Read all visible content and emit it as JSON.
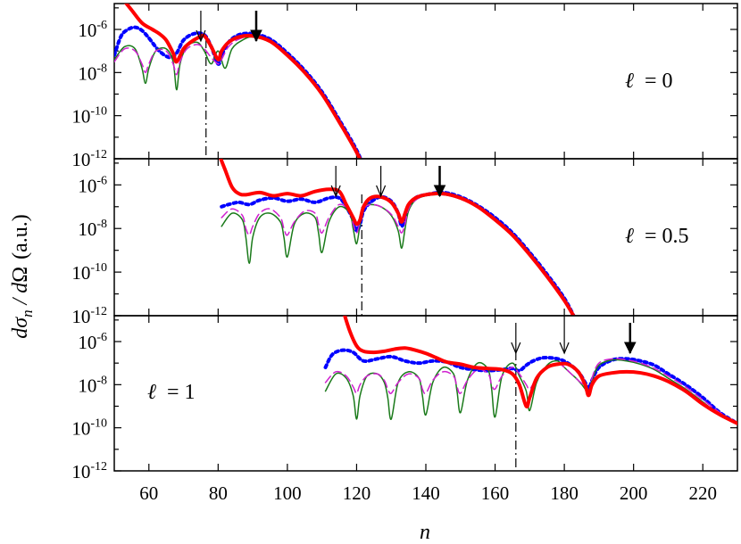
{
  "figure": {
    "ylabel": {
      "d1": "d",
      "sig": "σ",
      "sub": "n",
      "mid": " / d",
      "omega": "Ω",
      "units": "(a.u.)"
    },
    "xlabel": "n",
    "xticks": [
      "60",
      "80",
      "100",
      "120",
      "140",
      "160",
      "180",
      "200",
      "220"
    ]
  },
  "chart_data": [
    {
      "type": "line",
      "panel": "ℓ = 0",
      "label": {
        "ell": "ℓ",
        "eq": "= 0"
      },
      "xlim": [
        50,
        230
      ],
      "ylim_log10": [
        -12,
        -4.8
      ],
      "yscale": "log",
      "yticks": [
        {
          "base": "10",
          "exp": "-6"
        },
        {
          "base": "10",
          "exp": "-8"
        },
        {
          "base": "10",
          "exp": "-10"
        },
        {
          "base": "10",
          "exp": "-12"
        }
      ],
      "series": [
        {
          "style": "thick-red-solid",
          "color": "#ff0000",
          "x": [
            52,
            55,
            58,
            61,
            63,
            65,
            67,
            68,
            70,
            72,
            74,
            76,
            78,
            80,
            81,
            83,
            86,
            90,
            95,
            100,
            105,
            110,
            115,
            120,
            122
          ],
          "log10y": [
            -4.5,
            -5.1,
            -5.7,
            -6.0,
            -6.2,
            -6.5,
            -7.1,
            -7.5,
            -6.9,
            -6.6,
            -6.4,
            -6.3,
            -6.8,
            -7.4,
            -7.0,
            -6.6,
            -6.35,
            -6.3,
            -6.55,
            -7.2,
            -8.0,
            -9.0,
            -10.3,
            -11.7,
            -12.4
          ]
        },
        {
          "style": "dotted-blue",
          "color": "#0000ff",
          "x": [
            50,
            52,
            54,
            56,
            58,
            60,
            63,
            66,
            68,
            70,
            73,
            76,
            78,
            80,
            81,
            83,
            86,
            90,
            95,
            100,
            105,
            110,
            115,
            120,
            122
          ],
          "log10y": [
            -7.2,
            -6.3,
            -6.0,
            -5.9,
            -6.05,
            -6.4,
            -7.0,
            -7.3,
            -7.1,
            -6.5,
            -6.2,
            -6.25,
            -6.8,
            -7.6,
            -7.2,
            -6.6,
            -6.25,
            -6.2,
            -6.45,
            -7.1,
            -7.9,
            -8.9,
            -10.2,
            -11.6,
            -12.4
          ]
        },
        {
          "style": "thin-green-solid",
          "color": "#1a7a1a",
          "x": [
            50,
            53,
            56,
            58,
            59,
            60,
            62,
            65,
            67,
            68,
            69,
            71,
            74,
            76,
            78,
            80,
            82,
            84,
            87,
            90,
            95,
            100,
            105,
            110,
            115,
            120,
            122
          ],
          "log10y": [
            -7.4,
            -6.8,
            -6.9,
            -7.8,
            -8.5,
            -7.8,
            -7.0,
            -6.9,
            -7.5,
            -8.8,
            -7.6,
            -6.8,
            -6.6,
            -7.0,
            -7.6,
            -7.0,
            -7.8,
            -6.9,
            -6.5,
            -6.35,
            -6.6,
            -7.2,
            -8.0,
            -9.0,
            -10.3,
            -11.7,
            -12.4
          ]
        },
        {
          "style": "dashed-magenta",
          "color": "#d020d0",
          "x": [
            50,
            53,
            56,
            58,
            59,
            60,
            62,
            65,
            67,
            68,
            69,
            71,
            74,
            76,
            78,
            80,
            81,
            83,
            86,
            90,
            95,
            100,
            105,
            110,
            115,
            120,
            122
          ],
          "log10y": [
            -7.5,
            -6.9,
            -7.0,
            -7.6,
            -8.0,
            -7.6,
            -7.0,
            -7.0,
            -7.6,
            -8.1,
            -7.5,
            -6.9,
            -6.7,
            -6.9,
            -7.3,
            -7.6,
            -7.4,
            -6.8,
            -6.45,
            -6.32,
            -6.58,
            -7.2,
            -8.0,
            -9.0,
            -10.3,
            -11.7,
            -12.4
          ]
        }
      ],
      "arrows": [
        {
          "x": 75,
          "weight": "thin"
        },
        {
          "x": 91,
          "weight": "thick"
        }
      ],
      "dashdot_x": 76.5
    },
    {
      "type": "line",
      "panel": "ℓ = 0.5",
      "label": {
        "ell": "ℓ",
        "eq": "= 0.5"
      },
      "xlim": [
        50,
        230
      ],
      "ylim_log10": [
        -12,
        -4.8
      ],
      "yscale": "log",
      "yticks": [
        {
          "base": "10",
          "exp": "-6"
        },
        {
          "base": "10",
          "exp": "-8"
        },
        {
          "base": "10",
          "exp": "-10"
        },
        {
          "base": "10",
          "exp": "-12"
        }
      ],
      "series": [
        {
          "style": "thick-red-solid",
          "color": "#ff0000",
          "x": [
            80,
            82,
            84,
            86,
            88,
            92,
            96,
            100,
            104,
            108,
            112,
            115,
            117,
            119,
            120,
            121,
            122,
            124,
            127,
            130,
            132,
            133,
            134,
            135,
            137,
            140,
            145,
            150,
            155,
            160,
            165,
            170,
            175,
            180,
            183
          ],
          "log10y": [
            -4.5,
            -5.3,
            -6.1,
            -6.4,
            -6.45,
            -6.35,
            -6.5,
            -6.4,
            -6.5,
            -6.3,
            -6.2,
            -6.3,
            -6.9,
            -7.5,
            -7.8,
            -7.6,
            -7.0,
            -6.6,
            -6.55,
            -6.8,
            -7.3,
            -7.7,
            -7.3,
            -6.9,
            -6.6,
            -6.45,
            -6.4,
            -6.6,
            -7.0,
            -7.6,
            -8.3,
            -9.2,
            -10.2,
            -11.3,
            -12.1
          ]
        },
        {
          "style": "dotted-blue",
          "color": "#0000ff",
          "x": [
            81,
            83,
            86,
            89,
            92,
            96,
            100,
            104,
            108,
            112,
            115,
            117,
            119,
            120,
            121,
            122,
            124,
            127,
            130,
            132,
            133,
            134,
            135,
            137,
            140,
            145,
            150,
            155,
            160,
            165,
            170,
            175,
            180,
            183
          ],
          "log10y": [
            -7.0,
            -6.9,
            -6.8,
            -6.9,
            -6.7,
            -6.6,
            -6.75,
            -6.65,
            -6.8,
            -6.6,
            -6.6,
            -7.0,
            -7.6,
            -8.1,
            -7.8,
            -7.2,
            -6.8,
            -6.55,
            -6.75,
            -7.3,
            -7.9,
            -7.5,
            -7.0,
            -6.6,
            -6.45,
            -6.35,
            -6.55,
            -6.95,
            -7.5,
            -8.2,
            -9.1,
            -10.1,
            -11.2,
            -12.1
          ]
        },
        {
          "style": "thin-green-solid",
          "color": "#1a7a1a",
          "x": [
            81,
            84,
            87,
            88,
            89,
            90,
            92,
            95,
            98,
            99,
            100,
            102,
            105,
            108,
            109,
            110,
            112,
            115,
            118,
            119,
            120,
            121,
            122,
            124,
            127,
            130,
            132,
            133,
            134,
            135,
            137,
            140,
            145,
            150,
            155,
            160,
            165,
            170,
            175,
            180,
            183
          ],
          "log10y": [
            -7.9,
            -7.3,
            -7.6,
            -8.4,
            -9.6,
            -8.4,
            -7.5,
            -7.3,
            -7.7,
            -8.4,
            -9.3,
            -7.8,
            -7.3,
            -7.5,
            -8.2,
            -9.1,
            -7.7,
            -7.0,
            -7.3,
            -8.0,
            -8.7,
            -7.8,
            -7.0,
            -6.9,
            -7.0,
            -7.4,
            -8.1,
            -8.9,
            -8.0,
            -7.2,
            -6.7,
            -6.5,
            -6.45,
            -6.65,
            -7.05,
            -7.65,
            -8.35,
            -9.25,
            -10.25,
            -11.35,
            -12.1
          ]
        },
        {
          "style": "dashed-magenta",
          "color": "#d020d0",
          "x": [
            81,
            84,
            87,
            88,
            89,
            90,
            92,
            95,
            98,
            99,
            100,
            102,
            105,
            108,
            109,
            110,
            112,
            115,
            118,
            119,
            120,
            121,
            122,
            124,
            127,
            130,
            132,
            133,
            134,
            135,
            137,
            140,
            145,
            150,
            155,
            160,
            165,
            170,
            175,
            180,
            183
          ],
          "log10y": [
            -7.5,
            -7.1,
            -7.4,
            -8.0,
            -8.3,
            -7.9,
            -7.3,
            -7.1,
            -7.5,
            -8.0,
            -8.3,
            -7.7,
            -7.2,
            -7.3,
            -7.8,
            -8.2,
            -7.5,
            -6.9,
            -7.2,
            -7.8,
            -8.2,
            -7.7,
            -7.1,
            -6.9,
            -7.0,
            -7.35,
            -7.9,
            -8.2,
            -7.8,
            -7.1,
            -6.7,
            -6.5,
            -6.45,
            -6.65,
            -7.05,
            -7.65,
            -8.35,
            -9.25,
            -10.25,
            -11.35,
            -12.1
          ]
        }
      ],
      "arrows": [
        {
          "x": 114,
          "weight": "thin"
        },
        {
          "x": 127,
          "weight": "thin"
        },
        {
          "x": 144,
          "weight": "thick"
        }
      ],
      "dashdot_x": 121.5
    },
    {
      "type": "line",
      "panel": "ℓ = 1",
      "label": {
        "ell": "ℓ",
        "eq": "= 1"
      },
      "xlim": [
        50,
        230
      ],
      "ylim_log10": [
        -12,
        -4.8
      ],
      "yscale": "log",
      "yticks": [
        {
          "base": "10",
          "exp": "-6"
        },
        {
          "base": "10",
          "exp": "-8"
        },
        {
          "base": "10",
          "exp": "-10"
        },
        {
          "base": "10",
          "exp": "-12"
        }
      ],
      "series": [
        {
          "style": "thick-red-solid",
          "color": "#ff0000",
          "x": [
            116,
            118,
            120,
            122,
            125,
            128,
            131,
            134,
            137,
            140,
            143,
            146,
            150,
            154,
            158,
            162,
            165,
            167,
            169,
            170,
            172,
            175,
            178,
            181,
            184,
            186,
            187,
            188,
            190,
            194,
            198,
            202,
            206,
            210,
            215,
            220,
            225,
            230
          ],
          "log10y": [
            -4.5,
            -5.5,
            -6.2,
            -6.45,
            -6.5,
            -6.45,
            -6.35,
            -6.3,
            -6.4,
            -6.55,
            -6.75,
            -6.95,
            -7.05,
            -7.2,
            -7.25,
            -7.3,
            -7.5,
            -8.0,
            -9.0,
            -8.6,
            -7.7,
            -7.2,
            -7.05,
            -7.05,
            -7.4,
            -8.0,
            -8.5,
            -8.0,
            -7.6,
            -7.45,
            -7.4,
            -7.45,
            -7.6,
            -7.85,
            -8.3,
            -8.9,
            -9.4,
            -9.8
          ]
        },
        {
          "style": "dotted-blue",
          "color": "#0000ff",
          "x": [
            111,
            113,
            116,
            119,
            122,
            126,
            130,
            134,
            138,
            142,
            146,
            150,
            154,
            158,
            162,
            165,
            167,
            169,
            171,
            174,
            178,
            181,
            184,
            186,
            187,
            188,
            190,
            194,
            198,
            202,
            206,
            210,
            215,
            220,
            225,
            230
          ],
          "log10y": [
            -7.2,
            -6.6,
            -6.4,
            -6.5,
            -6.9,
            -6.8,
            -6.7,
            -6.9,
            -7.0,
            -6.9,
            -6.95,
            -7.2,
            -7.3,
            -7.35,
            -7.3,
            -7.25,
            -7.35,
            -7.1,
            -6.9,
            -6.75,
            -6.8,
            -7.0,
            -7.4,
            -7.9,
            -8.2,
            -7.8,
            -7.2,
            -6.85,
            -6.8,
            -6.9,
            -7.1,
            -7.5,
            -8.0,
            -8.6,
            -9.3,
            -9.8
          ]
        },
        {
          "style": "thin-green-solid",
          "color": "#1a7a1a",
          "x": [
            111,
            114,
            117,
            119,
            120,
            121,
            123,
            126,
            128,
            129,
            130,
            132,
            135,
            138,
            139,
            140,
            142,
            145,
            148,
            149,
            150,
            152,
            155,
            158,
            159,
            160,
            162,
            165,
            167,
            169,
            170,
            172,
            175,
            178,
            180,
            182,
            184,
            186,
            187,
            188,
            190,
            194,
            198,
            202,
            206,
            210,
            215,
            220,
            225,
            230
          ],
          "log10y": [
            -8.3,
            -7.5,
            -7.7,
            -8.5,
            -9.6,
            -8.5,
            -7.6,
            -7.5,
            -7.9,
            -8.6,
            -9.6,
            -7.9,
            -7.4,
            -7.7,
            -8.5,
            -9.4,
            -7.9,
            -7.2,
            -7.5,
            -8.3,
            -9.3,
            -7.8,
            -7.0,
            -7.3,
            -8.2,
            -9.5,
            -7.6,
            -7.0,
            -7.6,
            -8.3,
            -9.2,
            -7.9,
            -7.1,
            -6.9,
            -7.2,
            -7.5,
            -7.8,
            -8.2,
            -8.5,
            -7.8,
            -7.1,
            -6.85,
            -6.9,
            -7.05,
            -7.3,
            -7.7,
            -8.2,
            -8.8,
            -9.4,
            -9.8
          ]
        },
        {
          "style": "dashed-magenta",
          "color": "#d020d0",
          "x": [
            111,
            114,
            117,
            119,
            120,
            121,
            123,
            126,
            128,
            129,
            130,
            132,
            135,
            138,
            139,
            140,
            142,
            145,
            148,
            149,
            150,
            152,
            155,
            158,
            159,
            160,
            162,
            165,
            167,
            169,
            170,
            172,
            175,
            178,
            180,
            182,
            184,
            186,
            187,
            188,
            190,
            194,
            198,
            202,
            206,
            210,
            215,
            220,
            225,
            230
          ],
          "log10y": [
            -7.9,
            -7.4,
            -7.6,
            -8.1,
            -8.4,
            -8.0,
            -7.6,
            -7.5,
            -7.8,
            -8.2,
            -8.4,
            -7.9,
            -7.5,
            -7.7,
            -8.2,
            -8.4,
            -7.8,
            -7.4,
            -7.6,
            -8.1,
            -8.4,
            -7.8,
            -7.3,
            -7.5,
            -8.0,
            -8.2,
            -7.6,
            -7.2,
            -7.5,
            -8.0,
            -8.2,
            -7.7,
            -7.2,
            -7.0,
            -7.2,
            -7.5,
            -7.8,
            -8.1,
            -8.5,
            -7.7,
            -7.0,
            -6.8,
            -6.85,
            -7.0,
            -7.25,
            -7.6,
            -8.1,
            -8.7,
            -9.3,
            -9.8
          ]
        }
      ],
      "arrows": [
        {
          "x": 166,
          "weight": "thin"
        },
        {
          "x": 180,
          "weight": "thin"
        },
        {
          "x": 199,
          "weight": "thick"
        }
      ],
      "dashdot_x": 166
    }
  ]
}
